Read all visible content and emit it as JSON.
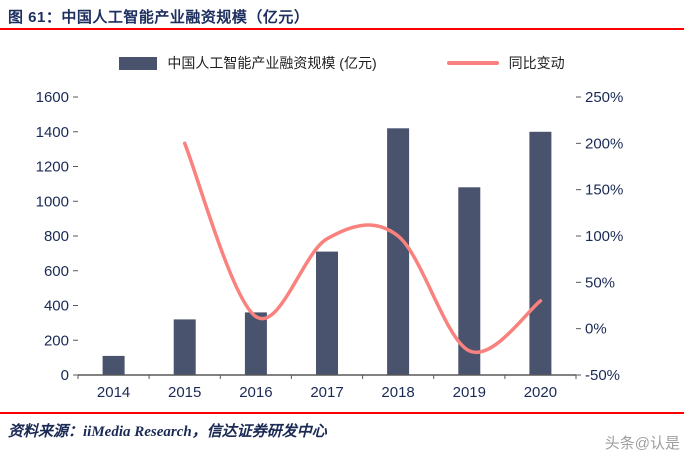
{
  "figure": {
    "title": "图 61：中国人工智能产业融资规模（亿元）",
    "source": "资料来源：iiMedia Research，信达证券研发中心",
    "watermark": "头条@认是"
  },
  "chart_data": {
    "type": "bar",
    "subtype": "bar+line combo, dual axis",
    "title": "中国人工智能产业融资规模（亿元）",
    "categories": [
      "2014",
      "2015",
      "2016",
      "2017",
      "2018",
      "2019",
      "2020"
    ],
    "series": [
      {
        "name": "中国人工智能产业融资规模 (亿元)",
        "type": "bar",
        "axis": "left",
        "color": "#49536E",
        "values": [
          110,
          320,
          360,
          710,
          1420,
          1080,
          1400
        ]
      },
      {
        "name": "同比变动",
        "type": "line",
        "axis": "right",
        "color": "#F9817E",
        "unit": "%",
        "values": [
          null,
          200,
          13,
          97,
          100,
          -24,
          30
        ]
      }
    ],
    "left_axis": {
      "min": 0,
      "max": 1600,
      "step": 200,
      "ticks": [
        "1600",
        "1400",
        "1200",
        "1000",
        "800",
        "600",
        "400",
        "200",
        "0"
      ]
    },
    "right_axis": {
      "min": -50,
      "max": 250,
      "step": 50,
      "ticks": [
        "250%",
        "200%",
        "150%",
        "100%",
        "50%",
        "0%",
        "-50%"
      ]
    },
    "legend_position": "top",
    "grid": false,
    "colors": {
      "accent_red": "#FE0000",
      "axis_text": "#1B2A55",
      "bar": "#49536E",
      "line": "#F9817E"
    }
  }
}
